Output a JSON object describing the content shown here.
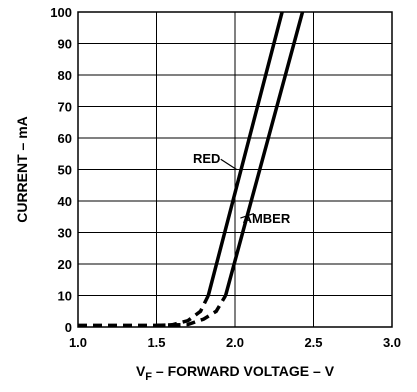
{
  "chart_data": {
    "type": "line",
    "title": "",
    "xlabel": {
      "main": "V",
      "sub": "F",
      "rest": " – FORWARD VOLTAGE – V"
    },
    "ylabel": "CURRENT – mA",
    "xlim": [
      1.0,
      3.0
    ],
    "ylim": [
      0,
      100
    ],
    "x_ticks": [
      "1.0",
      "1.5",
      "2.0",
      "2.5",
      "3.0"
    ],
    "y_ticks": [
      "0",
      "10",
      "20",
      "30",
      "40",
      "50",
      "60",
      "70",
      "80",
      "90",
      "100"
    ],
    "grid": true,
    "series": [
      {
        "name": "RED",
        "dashed": [
          [
            1.0,
            0.5
          ],
          [
            1.5,
            0.5
          ],
          [
            1.6,
            0.7
          ],
          [
            1.7,
            2
          ],
          [
            1.78,
            5
          ],
          [
            1.83,
            10
          ]
        ],
        "solid": [
          [
            1.83,
            10
          ],
          [
            2.3,
            100
          ]
        ]
      },
      {
        "name": "AMBER",
        "dashed": [
          [
            1.5,
            0.5
          ],
          [
            1.7,
            0.8
          ],
          [
            1.8,
            2.5
          ],
          [
            1.88,
            5
          ],
          [
            1.94,
            10
          ]
        ],
        "solid": [
          [
            1.94,
            10
          ],
          [
            2.43,
            100
          ]
        ]
      }
    ],
    "annotations": [
      {
        "text": "RED",
        "series": 0,
        "label_at": [
          1.82,
          52
        ],
        "target": [
          2.01,
          50
        ]
      },
      {
        "text": "AMBER",
        "series": 1,
        "label_at": [
          2.2,
          33
        ],
        "target": [
          2.12,
          36
        ]
      }
    ]
  }
}
